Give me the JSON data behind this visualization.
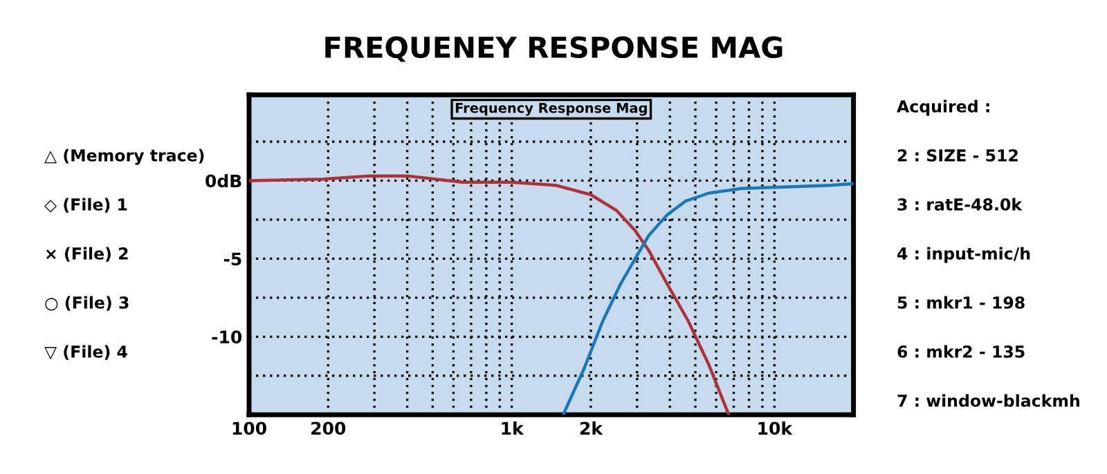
{
  "chart_data": {
    "type": "line",
    "title": "FREQUENEY RESPONSE MAG",
    "subtitle": "Frequency Response Mag",
    "log": "x",
    "xlim": [
      100,
      20000
    ],
    "ylim": [
      -15,
      5.5
    ],
    "xticks": [
      100,
      {
        "value": 200,
        "label": "200"
      },
      {
        "value": 300,
        "label": null
      },
      {
        "value": 400,
        "label": null
      },
      {
        "value": 500,
        "label": null
      },
      {
        "value": 600,
        "label": null
      },
      {
        "value": 700,
        "label": null
      },
      {
        "value": 800,
        "label": null
      },
      {
        "value": 900,
        "label": null
      },
      {
        "value": 1000,
        "label": "1k"
      },
      {
        "value": 2000,
        "label": "2k"
      },
      {
        "value": 3000,
        "label": null
      },
      {
        "value": 4000,
        "label": null
      },
      {
        "value": 5000,
        "label": null
      },
      {
        "value": 6000,
        "label": null
      },
      {
        "value": 7000,
        "label": null
      },
      {
        "value": 8000,
        "label": null
      },
      {
        "value": 9000,
        "label": null
      },
      {
        "value": 10000,
        "label": "10k"
      }
    ],
    "yticks": [
      {
        "value": 2.5,
        "label": null
      },
      {
        "value": 0,
        "label": "0dB"
      },
      {
        "value": -2.5,
        "label": null
      },
      {
        "value": -5,
        "label": "-5"
      },
      {
        "value": -7.5,
        "label": null
      },
      {
        "value": -10,
        "label": "-10"
      },
      {
        "value": -12.5,
        "label": null
      }
    ],
    "grid": true,
    "line_style": "solid",
    "marker": "none",
    "series": [
      {
        "color": "#b0303a",
        "x": [
          100,
          192,
          288,
          400,
          650,
          1000,
          1470,
          2000,
          2500,
          2950,
          3330,
          3900,
          4700,
          5630,
          6700
        ],
        "values": [
          0,
          0.1,
          0.3,
          0.3,
          -0.1,
          -0.1,
          -0.3,
          -0.9,
          -1.9,
          -3.2,
          -4.5,
          -6.6,
          -9,
          -11.8,
          -15
        ]
      },
      {
        "color": "#1a78b8",
        "x": [
          1570,
          1890,
          2220,
          2600,
          2950,
          3330,
          3900,
          4600,
          5630,
          7500,
          11200,
          16300,
          19800
        ],
        "values": [
          -15,
          -12,
          -9,
          -6.6,
          -5,
          -3.5,
          -2.2,
          -1.3,
          -0.8,
          -0.5,
          -0.4,
          -0.3,
          -0.2
        ]
      }
    ],
    "annotations": [
      "△ (Memory trace)",
      "◇ (File) 1",
      "× (File) 2",
      "○ (File) 3",
      "▽ (File) 4",
      "Acquired :",
      "2 : SIZE - 512",
      "3 : ratE-48.0k",
      "4 : input-mic/h",
      "5 : mkr1 - 198",
      "6 : mkr2 - 135",
      "7 : window-blackmh"
    ]
  }
}
